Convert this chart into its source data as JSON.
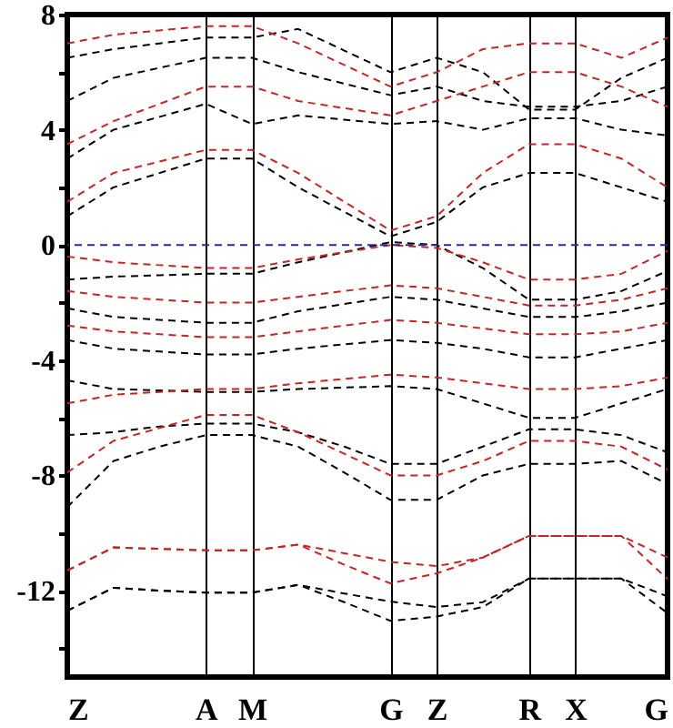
{
  "chart_data": {
    "type": "line",
    "categories": [
      "Z",
      null,
      null,
      "A",
      "M",
      null,
      null,
      "G",
      "Z",
      null,
      "R",
      "X",
      null,
      "G"
    ],
    "ylim": [
      -15,
      8
    ],
    "yticks": [
      {
        "value": -14,
        "label": null
      },
      -12,
      {
        "value": -10,
        "label": null
      },
      -8,
      {
        "value": -6,
        "label": null
      },
      -4,
      {
        "value": -2,
        "label": null
      },
      0,
      {
        "value": 2,
        "label": null
      },
      4,
      {
        "value": 6,
        "label": null
      },
      8
    ],
    "line_style": "dashed",
    "grid": "x",
    "series": [
      {
        "color": "#000000",
        "values": [
          -12.7,
          -11.9,
          -12.0,
          -12.07,
          -12.07,
          -11.8,
          -12.1,
          -12.38,
          -12.57,
          -12.4,
          -11.58,
          -11.58,
          -11.58,
          -12.2
        ]
      },
      {
        "color": "#000000",
        "values": [
          -12.7,
          -11.9,
          -12.0,
          -12.07,
          -12.07,
          -11.8,
          -12.4,
          -13.05,
          -12.9,
          -12.57,
          -11.58,
          -11.58,
          -11.58,
          -12.78
        ]
      },
      {
        "color": "#000000",
        "values": [
          -9.1,
          -7.5,
          -7.0,
          -6.6,
          -6.6,
          -7.0,
          -7.9,
          -8.85,
          -8.85,
          -8.0,
          -7.6,
          -7.6,
          -7.5,
          -8.3
        ]
      },
      {
        "color": "#000000",
        "values": [
          -6.6,
          -6.5,
          -6.3,
          -6.2,
          -6.2,
          -6.5,
          -7.0,
          -7.6,
          -7.6,
          -7.0,
          -6.4,
          -6.4,
          -6.6,
          -7.2
        ]
      },
      {
        "color": "#000000",
        "values": [
          -4.7,
          -5.0,
          -5.05,
          -5.1,
          -5.1,
          -5.0,
          -4.95,
          -4.9,
          -5.0,
          -5.5,
          -6.0,
          -6.0,
          -5.5,
          -5.0
        ]
      },
      {
        "color": "#000000",
        "values": [
          -3.3,
          -3.6,
          -3.7,
          -3.8,
          -3.8,
          -3.6,
          -3.45,
          -3.3,
          -3.4,
          -3.6,
          -3.9,
          -3.9,
          -3.6,
          -3.3
        ]
      },
      {
        "color": "#000000",
        "values": [
          -2.2,
          -2.5,
          -2.6,
          -2.7,
          -2.7,
          -2.3,
          -2.05,
          -1.8,
          -1.9,
          -2.2,
          -2.5,
          -2.5,
          -2.3,
          -2.0
        ]
      },
      {
        "color": "#000000",
        "values": [
          -1.2,
          -1.1,
          -1.05,
          -1.0,
          -1.0,
          -0.6,
          -0.25,
          0.1,
          0.0,
          -0.8,
          -1.9,
          -1.9,
          -1.6,
          -0.9
        ]
      },
      {
        "color": "#000000",
        "values": [
          1.0,
          2.0,
          2.5,
          3.0,
          3.0,
          2.0,
          1.15,
          0.3,
          0.8,
          2.0,
          2.5,
          2.5,
          2.0,
          1.5
        ]
      },
      {
        "color": "#000000",
        "values": [
          3.0,
          4.0,
          4.45,
          4.9,
          4.2,
          4.5,
          4.35,
          4.2,
          4.3,
          4.0,
          4.4,
          4.4,
          4.0,
          3.8
        ]
      },
      {
        "color": "#000000",
        "values": [
          5.0,
          5.8,
          6.15,
          6.5,
          6.5,
          6.0,
          5.6,
          5.2,
          5.5,
          5.0,
          4.8,
          4.8,
          5.0,
          5.5
        ]
      },
      {
        "color": "#000000",
        "values": [
          6.5,
          6.8,
          7.0,
          7.2,
          7.2,
          7.5,
          6.75,
          6.0,
          6.5,
          6.0,
          4.7,
          4.7,
          5.8,
          6.5
        ]
      },
      {
        "color": "#cc2222",
        "values": [
          -11.3,
          -10.5,
          -10.55,
          -10.6,
          -10.6,
          -10.4,
          -10.7,
          -11.0,
          -11.15,
          -10.85,
          -10.1,
          -10.1,
          -10.1,
          -10.85
        ]
      },
      {
        "color": "#cc2222",
        "values": [
          -11.3,
          -10.5,
          -10.55,
          -10.6,
          -10.6,
          -10.4,
          -11.1,
          -11.75,
          -11.4,
          -10.85,
          -10.1,
          -10.1,
          -10.1,
          -11.6
        ]
      },
      {
        "color": "#cc2222",
        "values": [
          -7.9,
          -6.8,
          -6.35,
          -5.9,
          -5.9,
          -6.5,
          -7.25,
          -8.0,
          -8.0,
          -7.5,
          -6.8,
          -6.8,
          -7.0,
          -7.8
        ]
      },
      {
        "color": "#cc2222",
        "values": [
          -5.5,
          -5.2,
          -5.1,
          -5.0,
          -5.0,
          -4.8,
          -4.65,
          -4.5,
          -4.6,
          -4.8,
          -5.0,
          -5.0,
          -4.9,
          -4.6
        ]
      },
      {
        "color": "#cc2222",
        "values": [
          -2.8,
          -3.0,
          -3.1,
          -3.2,
          -3.2,
          -3.0,
          -2.8,
          -2.6,
          -2.7,
          -2.9,
          -3.1,
          -3.1,
          -3.0,
          -2.7
        ]
      },
      {
        "color": "#cc2222",
        "values": [
          -1.6,
          -1.8,
          -1.9,
          -2.0,
          -2.0,
          -1.8,
          -1.6,
          -1.4,
          -1.5,
          -1.8,
          -2.1,
          -2.1,
          -1.9,
          -1.5
        ]
      },
      {
        "color": "#cc2222",
        "values": [
          -0.4,
          -0.6,
          -0.7,
          -0.8,
          -0.8,
          -0.5,
          -0.25,
          0.0,
          -0.1,
          -0.6,
          -1.2,
          -1.2,
          -1.0,
          -0.2
        ]
      },
      {
        "color": "#cc2222",
        "values": [
          1.5,
          2.5,
          2.9,
          3.3,
          3.3,
          2.5,
          1.5,
          0.5,
          1.0,
          2.5,
          3.5,
          3.5,
          3.0,
          2.0
        ]
      },
      {
        "color": "#cc2222",
        "values": [
          3.5,
          4.3,
          4.9,
          5.5,
          5.5,
          5.0,
          4.75,
          4.5,
          5.0,
          5.5,
          6.0,
          6.0,
          5.5,
          4.8
        ]
      },
      {
        "color": "#cc2222",
        "values": [
          7.0,
          7.3,
          7.45,
          7.6,
          7.6,
          7.0,
          6.25,
          5.5,
          6.0,
          6.8,
          7.0,
          7.0,
          6.5,
          7.2
        ]
      }
    ],
    "ref_lines": [
      {
        "axis": "y",
        "value": 0,
        "color": "#2a2a9a",
        "line_style": "dashed"
      }
    ]
  }
}
